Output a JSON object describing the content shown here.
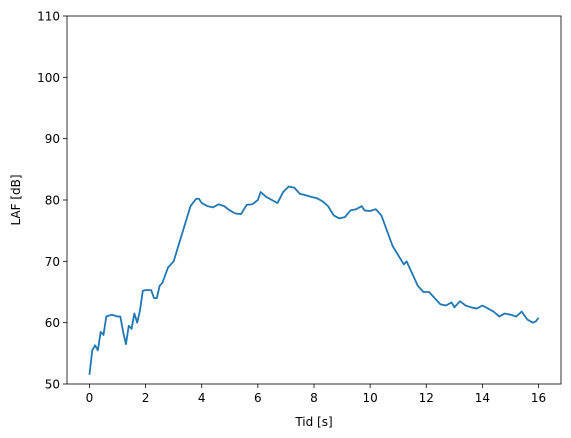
{
  "chart_data": {
    "type": "line",
    "xlabel": "Tid [s]",
    "ylabel": "LAF [dB]",
    "x": [
      0,
      0.1,
      0.2,
      0.3,
      0.4,
      0.5,
      0.6,
      0.8,
      1.0,
      1.1,
      1.2,
      1.3,
      1.4,
      1.5,
      1.6,
      1.7,
      1.8,
      1.9,
      2.0,
      2.2,
      2.3,
      2.4,
      2.5,
      2.6,
      2.8,
      3.0,
      3.2,
      3.4,
      3.6,
      3.8,
      3.9,
      4.0,
      4.2,
      4.4,
      4.6,
      4.8,
      5.0,
      5.2,
      5.4,
      5.6,
      5.8,
      6.0,
      6.1,
      6.3,
      6.5,
      6.7,
      6.9,
      7.1,
      7.3,
      7.5,
      7.7,
      7.9,
      8.1,
      8.3,
      8.5,
      8.7,
      8.9,
      9.1,
      9.3,
      9.5,
      9.7,
      9.8,
      10.0,
      10.2,
      10.4,
      10.6,
      10.8,
      11.0,
      11.2,
      11.3,
      11.5,
      11.7,
      11.9,
      12.1,
      12.3,
      12.5,
      12.7,
      12.9,
      13.0,
      13.2,
      13.4,
      13.6,
      13.8,
      14.0,
      14.2,
      14.4,
      14.6,
      14.8,
      15.0,
      15.2,
      15.4,
      15.6,
      15.8,
      15.9,
      16.0
    ],
    "values": [
      51.5,
      55.5,
      56.3,
      55.5,
      58.5,
      58,
      61,
      61.3,
      61,
      61,
      58.5,
      56.5,
      59.5,
      59,
      61.5,
      60,
      62,
      65.2,
      65.3,
      65.3,
      64,
      64,
      66,
      66.5,
      69,
      70,
      73,
      76,
      79,
      80.2,
      80.2,
      79.5,
      79,
      78.8,
      79.3,
      79,
      78.3,
      77.8,
      77.7,
      79.2,
      79.3,
      80,
      81.3,
      80.5,
      80,
      79.5,
      81.3,
      82.2,
      82,
      81,
      80.8,
      80.5,
      80.3,
      79.8,
      79,
      77.5,
      77,
      77.2,
      78.3,
      78.5,
      79,
      78.3,
      78.2,
      78.5,
      77.5,
      75,
      72.5,
      71,
      69.5,
      70,
      68,
      66,
      65,
      65,
      64,
      63,
      62.8,
      63.3,
      62.5,
      63.5,
      62.8,
      62.5,
      62.3,
      62.8,
      62.3,
      61.8,
      61,
      61.5,
      61.3,
      61,
      61.8,
      60.5,
      60,
      60.2,
      60.8
    ],
    "color": "#1f77b4",
    "xlim": [
      -0.8,
      16.8
    ],
    "ylim": [
      50,
      110
    ],
    "xticks": [
      0,
      2,
      4,
      6,
      8,
      10,
      12,
      14,
      16
    ],
    "yticks": [
      50,
      60,
      70,
      80,
      90,
      100,
      110
    ]
  }
}
